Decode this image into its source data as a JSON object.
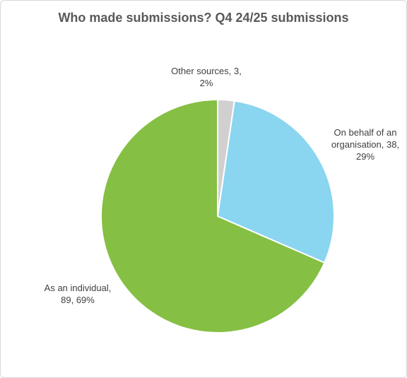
{
  "chart_data": {
    "type": "pie",
    "title": "Who made submissions? Q4 24/25 submissions",
    "slices": [
      {
        "label": "Other sources",
        "value": 3,
        "percent": "2%",
        "color": "#d0d0d0",
        "label_lines": [
          "Other sources, 3,",
          "2%"
        ]
      },
      {
        "label": "On behalf of an organisation",
        "value": 38,
        "percent": "29%",
        "color": "#8ad5f0",
        "label_lines": [
          "On behalf of an",
          "organisation, 38,",
          "29%"
        ]
      },
      {
        "label": "As an individual",
        "value": 89,
        "percent": "69%",
        "color": "#85bf43",
        "label_lines": [
          "As an individual,",
          "89, 69%"
        ]
      }
    ]
  }
}
